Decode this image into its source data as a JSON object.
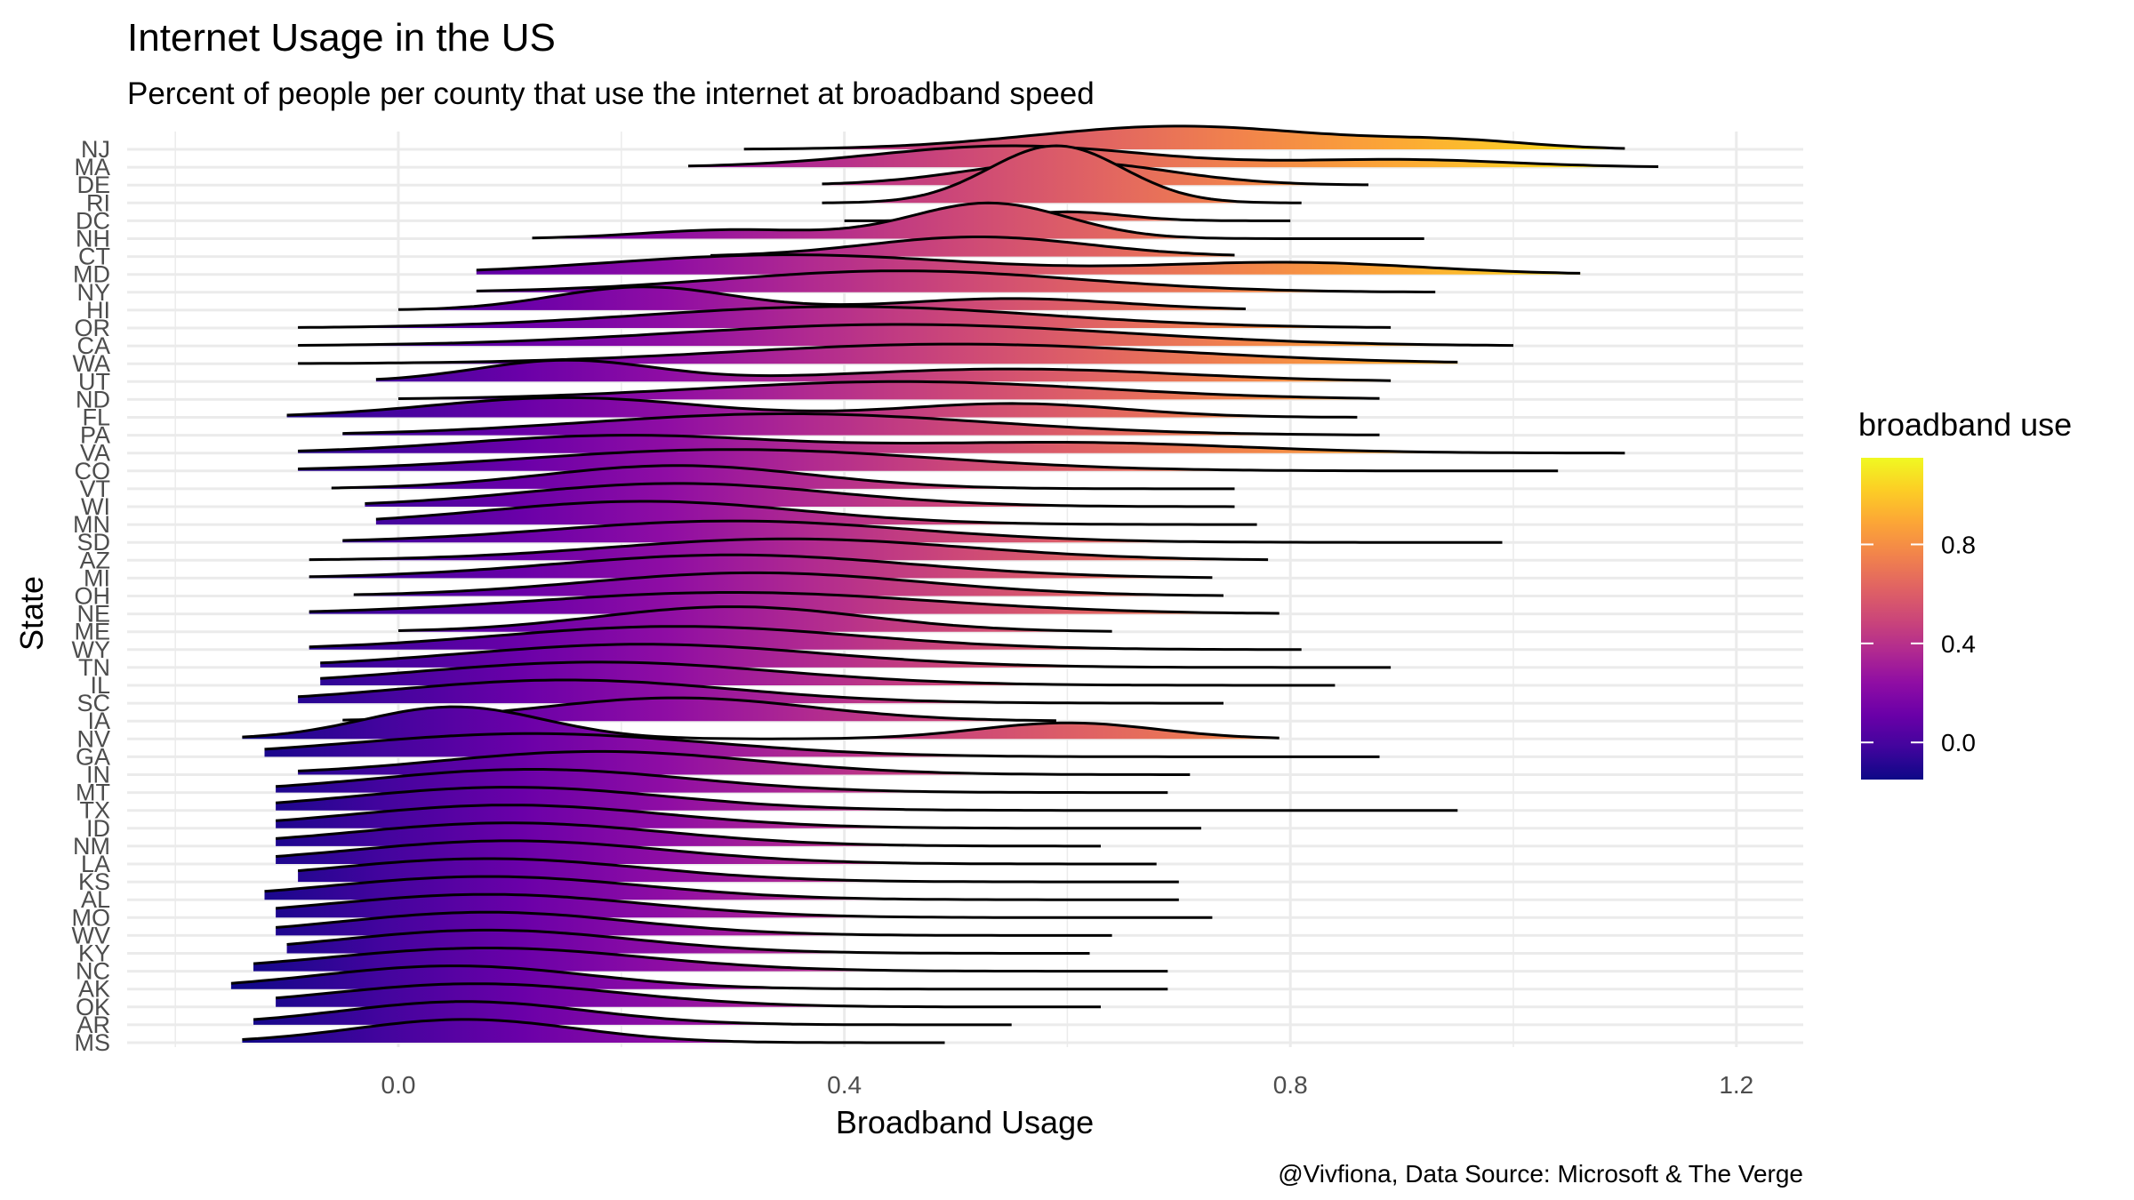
{
  "chart_data": {
    "type": "ridgeline",
    "title": "Internet Usage in the US",
    "subtitle": "Percent of people per county that use the internet at broadband speed",
    "xlabel": "Broadband Usage",
    "ylabel": "State",
    "caption": "@Vivfiona, Data Source: Microsoft & The Verge",
    "xlim": [
      -0.25,
      1.26
    ],
    "x_ticks": [
      0.0,
      0.4,
      0.8,
      1.2
    ],
    "x_tick_labels": [
      "0.0",
      "0.4",
      "0.8",
      "1.2"
    ],
    "grid": true,
    "legend": {
      "title": "broadband use",
      "position": "right",
      "range": [
        -0.15,
        1.15
      ],
      "ticks": [
        0.0,
        0.4,
        0.8
      ],
      "tick_labels": [
        "0.0",
        "0.4",
        "0.8"
      ],
      "palette": "plasma"
    },
    "colors": {
      "density_line": "#000000",
      "grid": "#ebebeb"
    },
    "states": [
      {
        "name": "NJ",
        "min": 0.31,
        "max": 1.1,
        "components": [
          [
            0.7,
            0.13,
            1.0
          ],
          [
            0.95,
            0.07,
            0.3
          ]
        ],
        "height": 1.3
      },
      {
        "name": "MA",
        "min": 0.26,
        "max": 1.13,
        "components": [
          [
            0.55,
            0.12,
            1.0
          ],
          [
            0.9,
            0.1,
            0.35
          ]
        ],
        "height": 1.2
      },
      {
        "name": "DE",
        "min": 0.38,
        "max": 0.87,
        "components": [
          [
            0.6,
            0.09,
            1.0
          ]
        ],
        "height": 1.3
      },
      {
        "name": "RI",
        "min": 0.38,
        "max": 0.81,
        "components": [
          [
            0.59,
            0.06,
            1.0
          ]
        ],
        "height": 3.2
      },
      {
        "name": "DC",
        "min": 0.4,
        "max": 0.8,
        "components": [
          [
            0.6,
            0.05,
            1.0
          ]
        ],
        "height": 0.5
      },
      {
        "name": "NH",
        "min": 0.12,
        "max": 0.92,
        "components": [
          [
            0.53,
            0.07,
            1.0
          ],
          [
            0.3,
            0.08,
            0.25
          ]
        ],
        "height": 2.0
      },
      {
        "name": "CT",
        "min": 0.28,
        "max": 0.75,
        "components": [
          [
            0.52,
            0.1,
            1.0
          ]
        ],
        "height": 1.1
      },
      {
        "name": "MD",
        "min": 0.07,
        "max": 1.06,
        "components": [
          [
            0.35,
            0.16,
            1.0
          ],
          [
            0.8,
            0.12,
            0.6
          ]
        ],
        "height": 1.1
      },
      {
        "name": "NY",
        "min": 0.07,
        "max": 0.93,
        "components": [
          [
            0.45,
            0.16,
            1.0
          ]
        ],
        "height": 1.2
      },
      {
        "name": "HI",
        "min": 0.0,
        "max": 0.76,
        "components": [
          [
            0.22,
            0.08,
            1.0
          ],
          [
            0.55,
            0.1,
            0.5
          ]
        ],
        "height": 1.3
      },
      {
        "name": "OR",
        "min": -0.09,
        "max": 0.89,
        "components": [
          [
            0.4,
            0.18,
            1.0
          ]
        ],
        "height": 1.2
      },
      {
        "name": "CA",
        "min": -0.09,
        "max": 1.0,
        "components": [
          [
            0.45,
            0.2,
            1.0
          ]
        ],
        "height": 1.2
      },
      {
        "name": "WA",
        "min": -0.09,
        "max": 0.95,
        "components": [
          [
            0.5,
            0.2,
            1.0
          ]
        ],
        "height": 1.1
      },
      {
        "name": "UT",
        "min": -0.02,
        "max": 0.89,
        "components": [
          [
            0.15,
            0.08,
            1.0
          ],
          [
            0.55,
            0.15,
            0.6
          ]
        ],
        "height": 1.2
      },
      {
        "name": "ND",
        "min": 0.0,
        "max": 0.88,
        "components": [
          [
            0.45,
            0.18,
            1.0
          ]
        ],
        "height": 1.0
      },
      {
        "name": "FL",
        "min": -0.1,
        "max": 0.86,
        "components": [
          [
            0.15,
            0.12,
            1.0
          ],
          [
            0.55,
            0.1,
            0.7
          ]
        ],
        "height": 1.1
      },
      {
        "name": "PA",
        "min": -0.05,
        "max": 0.88,
        "components": [
          [
            0.35,
            0.18,
            1.0
          ]
        ],
        "height": 1.2
      },
      {
        "name": "VA",
        "min": -0.09,
        "max": 1.1,
        "components": [
          [
            0.2,
            0.14,
            1.0
          ],
          [
            0.6,
            0.15,
            0.6
          ]
        ],
        "height": 1.0
      },
      {
        "name": "CO",
        "min": -0.09,
        "max": 1.04,
        "components": [
          [
            0.3,
            0.18,
            1.0
          ]
        ],
        "height": 1.2
      },
      {
        "name": "VT",
        "min": -0.06,
        "max": 0.75,
        "components": [
          [
            0.25,
            0.12,
            1.0
          ]
        ],
        "height": 1.3
      },
      {
        "name": "WI",
        "min": -0.03,
        "max": 0.75,
        "components": [
          [
            0.25,
            0.14,
            1.0
          ]
        ],
        "height": 1.3
      },
      {
        "name": "MN",
        "min": -0.02,
        "max": 0.77,
        "components": [
          [
            0.22,
            0.14,
            1.0
          ]
        ],
        "height": 1.3
      },
      {
        "name": "SD",
        "min": -0.05,
        "max": 0.99,
        "components": [
          [
            0.3,
            0.16,
            1.0
          ]
        ],
        "height": 1.2
      },
      {
        "name": "AZ",
        "min": -0.08,
        "max": 0.78,
        "components": [
          [
            0.35,
            0.16,
            1.0
          ]
        ],
        "height": 1.2
      },
      {
        "name": "MI",
        "min": -0.08,
        "max": 0.73,
        "components": [
          [
            0.3,
            0.16,
            1.0
          ]
        ],
        "height": 1.3
      },
      {
        "name": "OH",
        "min": -0.04,
        "max": 0.74,
        "components": [
          [
            0.32,
            0.15,
            1.0
          ]
        ],
        "height": 1.3
      },
      {
        "name": "NE",
        "min": -0.08,
        "max": 0.79,
        "components": [
          [
            0.3,
            0.18,
            1.0
          ]
        ],
        "height": 1.2
      },
      {
        "name": "ME",
        "min": 0.0,
        "max": 0.64,
        "components": [
          [
            0.3,
            0.12,
            1.0
          ]
        ],
        "height": 1.4
      },
      {
        "name": "WY",
        "min": -0.08,
        "max": 0.81,
        "components": [
          [
            0.25,
            0.16,
            1.0
          ]
        ],
        "height": 1.3
      },
      {
        "name": "TN",
        "min": -0.07,
        "max": 0.89,
        "components": [
          [
            0.22,
            0.16,
            1.0
          ]
        ],
        "height": 1.3
      },
      {
        "name": "IL",
        "min": -0.07,
        "max": 0.84,
        "components": [
          [
            0.18,
            0.16,
            1.0
          ]
        ],
        "height": 1.3
      },
      {
        "name": "SC",
        "min": -0.09,
        "max": 0.74,
        "components": [
          [
            0.15,
            0.15,
            1.0
          ]
        ],
        "height": 1.3
      },
      {
        "name": "IA",
        "min": -0.05,
        "max": 0.59,
        "components": [
          [
            0.25,
            0.12,
            1.0
          ]
        ],
        "height": 1.3
      },
      {
        "name": "NV",
        "min": -0.14,
        "max": 0.79,
        "components": [
          [
            0.05,
            0.08,
            1.0
          ],
          [
            0.6,
            0.08,
            0.5
          ]
        ],
        "height": 1.8
      },
      {
        "name": "GA",
        "min": -0.12,
        "max": 0.88,
        "components": [
          [
            0.12,
            0.16,
            1.0
          ]
        ],
        "height": 1.3
      },
      {
        "name": "IN",
        "min": -0.09,
        "max": 0.71,
        "components": [
          [
            0.18,
            0.14,
            1.0
          ]
        ],
        "height": 1.3
      },
      {
        "name": "MT",
        "min": -0.11,
        "max": 0.69,
        "components": [
          [
            0.12,
            0.14,
            1.0
          ]
        ],
        "height": 1.3
      },
      {
        "name": "TX",
        "min": -0.11,
        "max": 0.95,
        "components": [
          [
            0.1,
            0.14,
            1.0
          ]
        ],
        "height": 1.3
      },
      {
        "name": "ID",
        "min": -0.11,
        "max": 0.72,
        "components": [
          [
            0.1,
            0.14,
            1.0
          ]
        ],
        "height": 1.3
      },
      {
        "name": "NM",
        "min": -0.11,
        "max": 0.63,
        "components": [
          [
            0.1,
            0.14,
            1.0
          ]
        ],
        "height": 1.3
      },
      {
        "name": "LA",
        "min": -0.11,
        "max": 0.68,
        "components": [
          [
            0.1,
            0.14,
            1.0
          ]
        ],
        "height": 1.3
      },
      {
        "name": "KS",
        "min": -0.09,
        "max": 0.7,
        "components": [
          [
            0.08,
            0.14,
            1.0
          ]
        ],
        "height": 1.3
      },
      {
        "name": "AL",
        "min": -0.12,
        "max": 0.7,
        "components": [
          [
            0.08,
            0.14,
            1.0
          ]
        ],
        "height": 1.3
      },
      {
        "name": "MO",
        "min": -0.11,
        "max": 0.73,
        "components": [
          [
            0.08,
            0.14,
            1.0
          ]
        ],
        "height": 1.3
      },
      {
        "name": "WV",
        "min": -0.11,
        "max": 0.64,
        "components": [
          [
            0.08,
            0.13,
            1.0
          ]
        ],
        "height": 1.3
      },
      {
        "name": "KY",
        "min": -0.1,
        "max": 0.62,
        "components": [
          [
            0.08,
            0.13,
            1.0
          ]
        ],
        "height": 1.3
      },
      {
        "name": "NC",
        "min": -0.13,
        "max": 0.69,
        "components": [
          [
            0.08,
            0.14,
            1.0
          ]
        ],
        "height": 1.3
      },
      {
        "name": "AK",
        "min": -0.15,
        "max": 0.69,
        "components": [
          [
            0.05,
            0.12,
            1.0
          ]
        ],
        "height": 1.3
      },
      {
        "name": "OK",
        "min": -0.11,
        "max": 0.63,
        "components": [
          [
            0.07,
            0.13,
            1.0
          ]
        ],
        "height": 1.3
      },
      {
        "name": "AR",
        "min": -0.13,
        "max": 0.55,
        "components": [
          [
            0.06,
            0.11,
            1.0
          ]
        ],
        "height": 1.3
      },
      {
        "name": "MS",
        "min": -0.14,
        "max": 0.49,
        "components": [
          [
            0.06,
            0.1,
            1.0
          ]
        ],
        "height": 1.3
      }
    ]
  }
}
